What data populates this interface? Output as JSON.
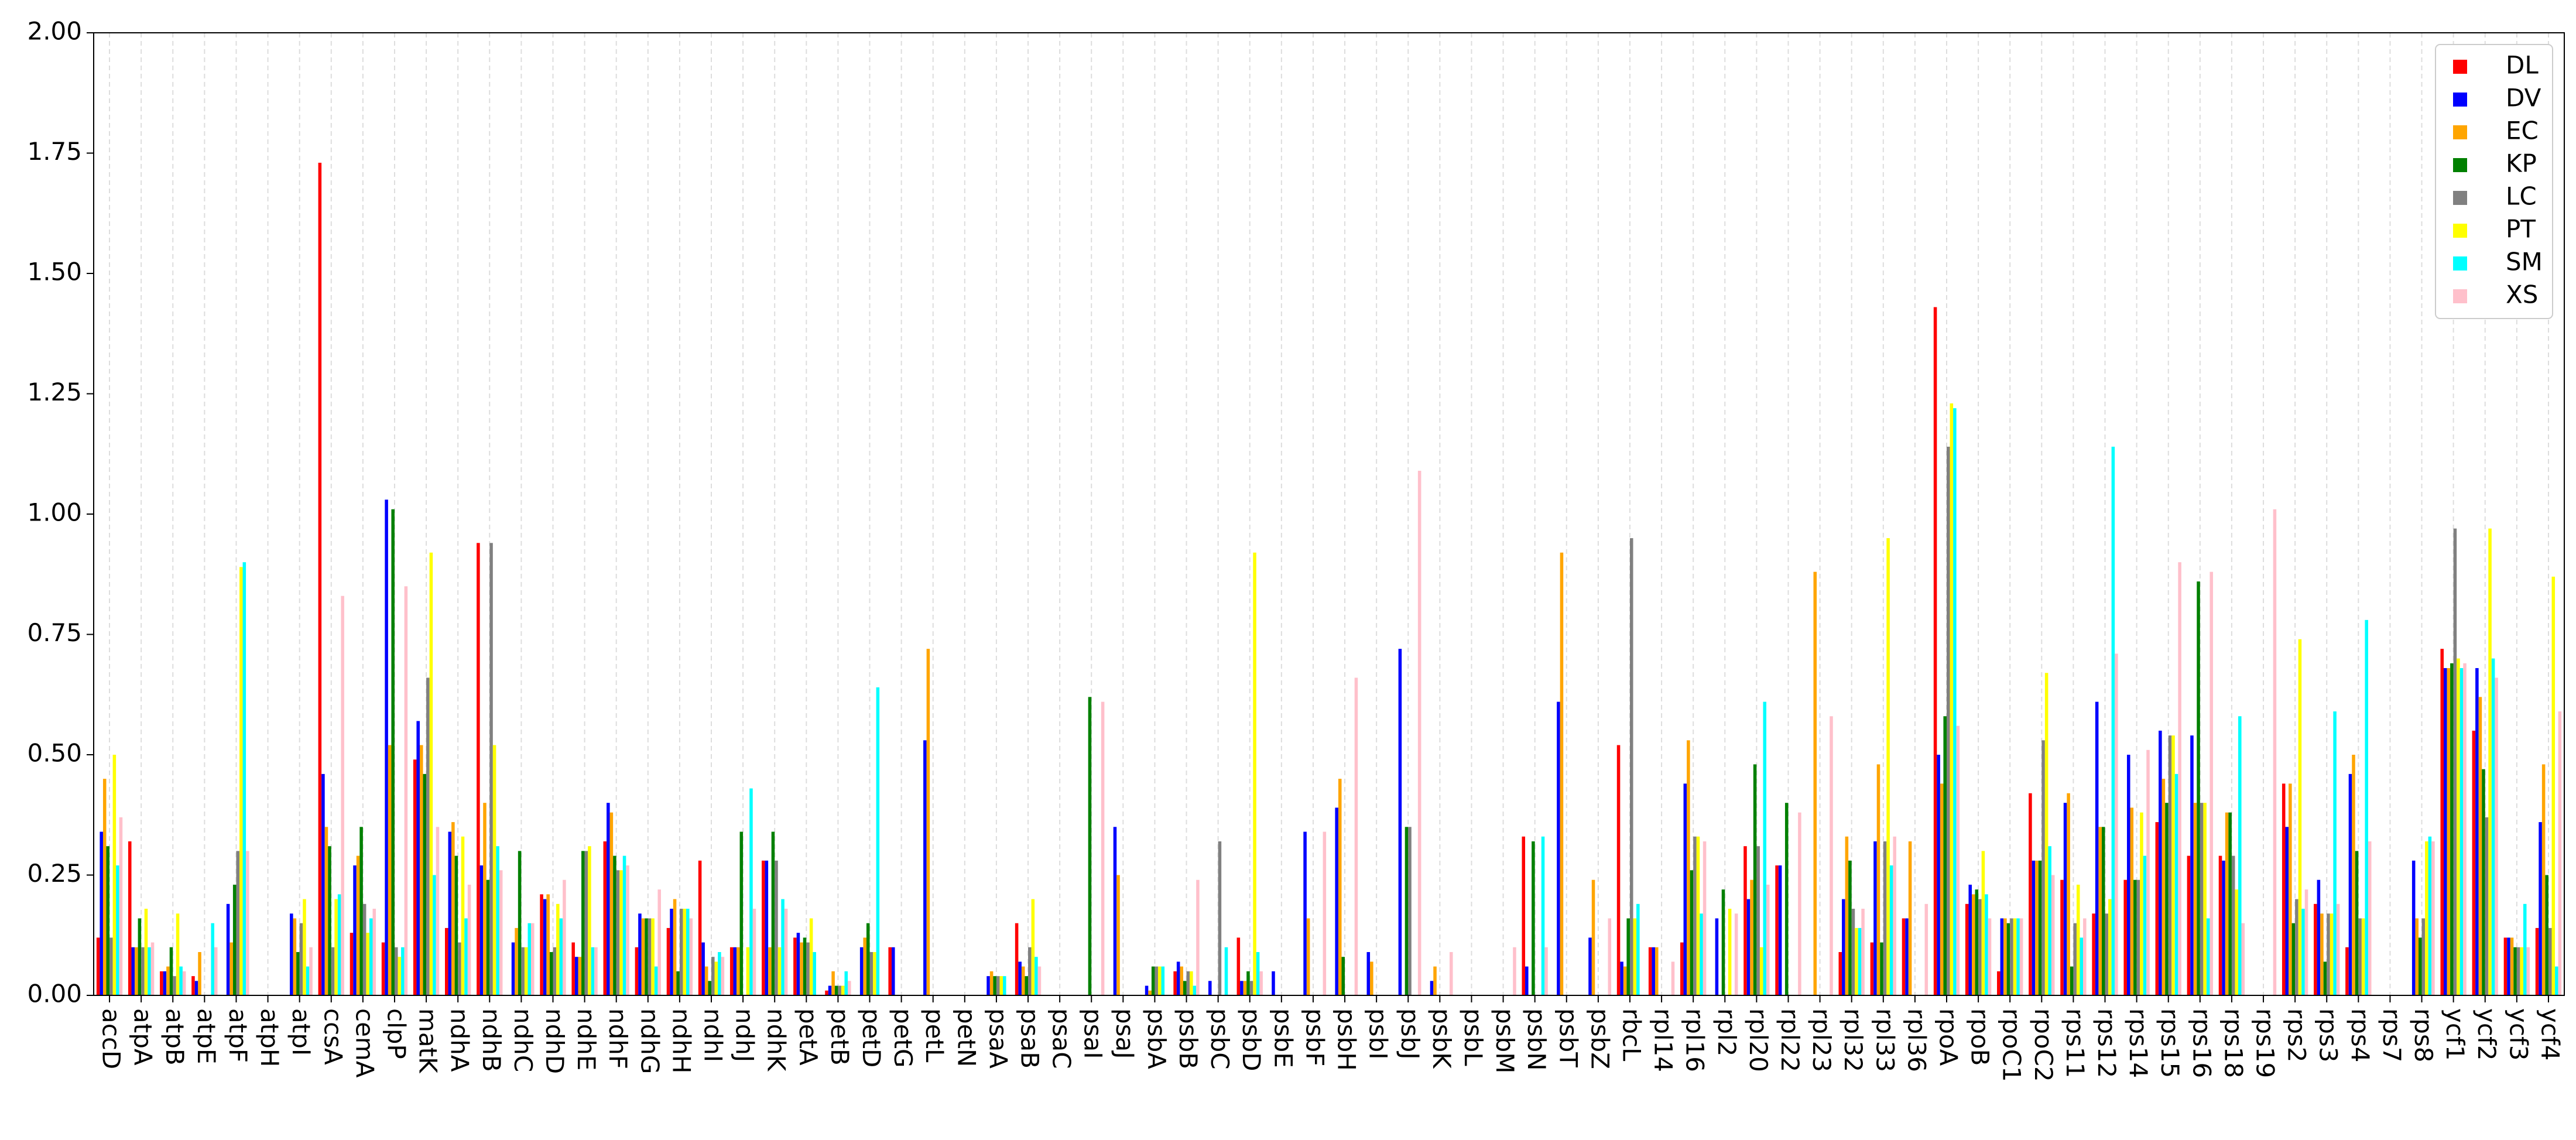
{
  "chart_data": {
    "type": "bar",
    "categories": [
      "accD",
      "atpA",
      "atpB",
      "atpE",
      "atpF",
      "atpH",
      "atpI",
      "ccsA",
      "cemA",
      "clpP",
      "matK",
      "ndhA",
      "ndhB",
      "ndhC",
      "ndhD",
      "ndhE",
      "ndhF",
      "ndhG",
      "ndhH",
      "ndhI",
      "ndhJ",
      "ndhK",
      "petA",
      "petB",
      "petD",
      "petG",
      "petL",
      "petN",
      "psaA",
      "psaB",
      "psaC",
      "psaI",
      "psaJ",
      "psbA",
      "psbB",
      "psbC",
      "psbD",
      "psbE",
      "psbF",
      "psbH",
      "psbI",
      "psbJ",
      "psbK",
      "psbL",
      "psbM",
      "psbN",
      "psbT",
      "psbZ",
      "rbcL",
      "rpl14",
      "rpl16",
      "rpl2",
      "rpl20",
      "rpl22",
      "rpl23",
      "rpl32",
      "rpl33",
      "rpl36",
      "rpoA",
      "rpoB",
      "rpoC1",
      "rpoC2",
      "rps11",
      "rps12",
      "rps14",
      "rps15",
      "rps16",
      "rps18",
      "rps19",
      "rps2",
      "rps3",
      "rps4",
      "rps7",
      "rps8",
      "ycf1",
      "ycf2",
      "ycf3",
      "ycf4"
    ],
    "series": [
      {
        "name": "DL",
        "color": "#ff0000",
        "values": [
          0.12,
          0.32,
          0.05,
          0.04,
          0,
          0,
          0,
          1.73,
          0.13,
          0.11,
          0.49,
          0.14,
          0.94,
          0,
          0.21,
          0.11,
          0.32,
          0.1,
          0.14,
          0.28,
          0.1,
          0.28,
          0.12,
          0.01,
          0,
          0.1,
          0,
          0,
          0,
          0.15,
          0,
          0,
          0,
          0,
          0.05,
          0,
          0.12,
          0,
          0,
          0,
          0,
          0,
          0,
          0,
          0,
          0.33,
          0,
          0,
          0.52,
          0.1,
          0.11,
          0,
          0.31,
          0.27,
          0,
          0.09,
          0.11,
          0.16,
          1.43,
          0.19,
          0.05,
          0.42,
          0.24,
          0.17,
          0.24,
          0.36,
          0.29,
          0.29,
          0,
          0.44,
          0.19,
          0.1,
          0,
          0,
          0.72,
          0.55,
          0.12,
          0.14
        ]
      },
      {
        "name": "DV",
        "color": "#0000ff",
        "values": [
          0.34,
          0.1,
          0.05,
          0.03,
          0.19,
          0,
          0.17,
          0.46,
          0.27,
          1.03,
          0.57,
          0.34,
          0.27,
          0.11,
          0.2,
          0.08,
          0.4,
          0.17,
          0.18,
          0.11,
          0.1,
          0.28,
          0.13,
          0.02,
          0.1,
          0.1,
          0.53,
          0,
          0.04,
          0.07,
          0,
          0,
          0.35,
          0.02,
          0.07,
          0.03,
          0.03,
          0.05,
          0.34,
          0.39,
          0.09,
          0.72,
          0.03,
          0,
          0,
          0.06,
          0.61,
          0.12,
          0.07,
          0.1,
          0.44,
          0.16,
          0.2,
          0.27,
          0,
          0.2,
          0.32,
          0.16,
          0.5,
          0.23,
          0.16,
          0.28,
          0.4,
          0.61,
          0.5,
          0.55,
          0.54,
          0.28,
          0,
          0.35,
          0.24,
          0.46,
          0,
          0.28,
          0.68,
          0.68,
          0.12,
          0.36
        ]
      },
      {
        "name": "EC",
        "color": "#ffa500",
        "values": [
          0.45,
          0.1,
          0.06,
          0.09,
          0.11,
          0,
          0.16,
          0.35,
          0.29,
          0.52,
          0.52,
          0.36,
          0.4,
          0.14,
          0.21,
          0.08,
          0.38,
          0.16,
          0.2,
          0.06,
          0.1,
          0.1,
          0.11,
          0.05,
          0.12,
          0,
          0.72,
          0,
          0.05,
          0.06,
          0,
          0,
          0.25,
          0.01,
          0.06,
          0,
          0.03,
          0,
          0.16,
          0.45,
          0.07,
          0,
          0.06,
          0,
          0,
          0,
          0.92,
          0.24,
          0.06,
          0.1,
          0.53,
          0,
          0.24,
          0,
          0.88,
          0.33,
          0.48,
          0.32,
          0.44,
          0.21,
          0.16,
          0.28,
          0.42,
          0.35,
          0.39,
          0.45,
          0.4,
          0.38,
          0,
          0.44,
          0.17,
          0.5,
          0,
          0.16,
          0.68,
          0.62,
          0.12,
          0.48
        ]
      },
      {
        "name": "KP",
        "color": "#008000",
        "values": [
          0.31,
          0.16,
          0.1,
          0,
          0.23,
          0,
          0.09,
          0.31,
          0.35,
          1.01,
          0.46,
          0.29,
          0.24,
          0.3,
          0.09,
          0.3,
          0.29,
          0.16,
          0.05,
          0.03,
          0.34,
          0.34,
          0.12,
          0.02,
          0.15,
          0,
          0,
          0,
          0.04,
          0.04,
          0,
          0.62,
          0,
          0.06,
          0.03,
          0,
          0.05,
          0,
          0,
          0.08,
          0,
          0.35,
          0,
          0,
          0,
          0.32,
          0,
          0,
          0.16,
          0,
          0.26,
          0.22,
          0.48,
          0.4,
          0,
          0.28,
          0.11,
          0,
          0.58,
          0.22,
          0.15,
          0.28,
          0.06,
          0.35,
          0.24,
          0.4,
          0.86,
          0.38,
          0,
          0.15,
          0.07,
          0.3,
          0,
          0.12,
          0.69,
          0.47,
          0.1,
          0.25
        ]
      },
      {
        "name": "LC",
        "color": "#808080",
        "values": [
          0.12,
          0.1,
          0.04,
          0,
          0.3,
          0,
          0.15,
          0.1,
          0.19,
          0.1,
          0.66,
          0.11,
          0.94,
          0.1,
          0.1,
          0.3,
          0.26,
          0.16,
          0.18,
          0.08,
          0,
          0.28,
          0.11,
          0.02,
          0.09,
          0,
          0,
          0,
          0.04,
          0.1,
          0,
          0,
          0,
          0.06,
          0.05,
          0.32,
          0.03,
          0,
          0,
          0,
          0,
          0.35,
          0,
          0,
          0,
          0,
          0,
          0,
          0.95,
          0,
          0.33,
          0,
          0.31,
          0,
          0,
          0.18,
          0.32,
          0,
          1.14,
          0.2,
          0.16,
          0.53,
          0.15,
          0.17,
          0.24,
          0.54,
          0.4,
          0.29,
          0,
          0.2,
          0.17,
          0.16,
          0,
          0.16,
          0.97,
          0.37,
          0.1,
          0.14
        ]
      },
      {
        "name": "PT",
        "color": "#ffff00",
        "values": [
          0.5,
          0.18,
          0.17,
          0,
          0.89,
          0,
          0.2,
          0.2,
          0.13,
          0.08,
          0.92,
          0.33,
          0.52,
          0.1,
          0.19,
          0.31,
          0.26,
          0.16,
          0.18,
          0.07,
          0.1,
          0.1,
          0.16,
          0.02,
          0.09,
          0,
          0,
          0,
          0.04,
          0.2,
          0,
          0,
          0,
          0.06,
          0.05,
          0,
          0.92,
          0,
          0,
          0,
          0,
          0,
          0,
          0,
          0,
          0,
          0,
          0,
          0.16,
          0,
          0.33,
          0.18,
          0.1,
          0,
          0,
          0.14,
          0.95,
          0,
          1.23,
          0.3,
          0.16,
          0.67,
          0.23,
          0.2,
          0.38,
          0.54,
          0.4,
          0.22,
          0,
          0.74,
          0.17,
          0.16,
          0,
          0.32,
          0.7,
          0.97,
          0.1,
          0.87
        ]
      },
      {
        "name": "SM",
        "color": "#00ffff",
        "values": [
          0.27,
          0.1,
          0.06,
          0.15,
          0.9,
          0,
          0.06,
          0.21,
          0.16,
          0.1,
          0.25,
          0.16,
          0.31,
          0.15,
          0.16,
          0.1,
          0.29,
          0.06,
          0.18,
          0.09,
          0.43,
          0.2,
          0.09,
          0.05,
          0.64,
          0,
          0,
          0,
          0.04,
          0.08,
          0,
          0,
          0,
          0.06,
          0.02,
          0.1,
          0.09,
          0,
          0,
          0,
          0,
          0,
          0,
          0,
          0,
          0.33,
          0,
          0,
          0.19,
          0,
          0.17,
          0,
          0.61,
          0,
          0,
          0.14,
          0.27,
          0,
          1.22,
          0.21,
          0.16,
          0.31,
          0.12,
          1.14,
          0.29,
          0.46,
          0.16,
          0.58,
          0,
          0.18,
          0.59,
          0.78,
          0,
          0.33,
          0.68,
          0.7,
          0.19,
          0.06
        ]
      },
      {
        "name": "XS",
        "color": "#ffc0cb",
        "values": [
          0.37,
          0.11,
          0.05,
          0.1,
          0.3,
          0,
          0.1,
          0.83,
          0.18,
          0.85,
          0.35,
          0.23,
          0.26,
          0.15,
          0.24,
          0.1,
          0.27,
          0.22,
          0.16,
          0.08,
          0.18,
          0.18,
          0,
          0.03,
          0,
          0,
          0,
          0,
          0,
          0.06,
          0,
          0.61,
          0,
          0,
          0.24,
          0,
          0.05,
          0,
          0.34,
          0.66,
          0,
          1.09,
          0.09,
          0,
          0.1,
          0.1,
          0,
          0.16,
          0,
          0.07,
          0.32,
          0.17,
          0.23,
          0.38,
          0.58,
          0.18,
          0.33,
          0.19,
          0.56,
          0.16,
          0.16,
          0.25,
          0.16,
          0.71,
          0.51,
          0.9,
          0.88,
          0.15,
          1.01,
          0.22,
          0.19,
          0.32,
          0,
          0.32,
          0.69,
          0.66,
          0.1,
          0.59
        ]
      }
    ],
    "ylim": [
      0,
      2
    ],
    "yticks": [
      {
        "value": 0,
        "label": "0.00"
      },
      {
        "value": 0.25,
        "label": "0.25"
      },
      {
        "value": 0.5,
        "label": "0.50"
      },
      {
        "value": 0.75,
        "label": "0.75"
      },
      {
        "value": 1,
        "label": "1.00"
      },
      {
        "value": 1.25,
        "label": "1.25"
      },
      {
        "value": 1.5,
        "label": "1.50"
      },
      {
        "value": 1.75,
        "label": "1.75"
      },
      {
        "value": 2,
        "label": "2.00"
      }
    ],
    "grid": true,
    "legend": "upper right"
  }
}
